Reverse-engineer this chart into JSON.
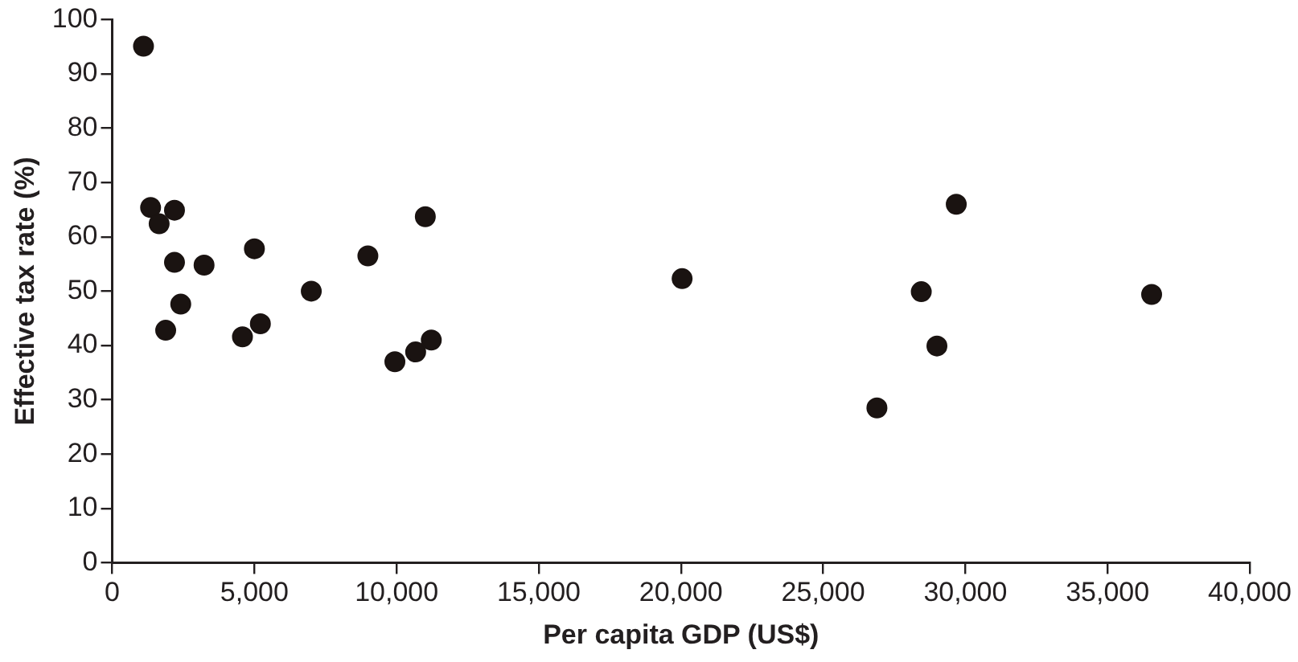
{
  "chart_data": {
    "type": "scatter",
    "xlabel": "Per capita GDP (US$)",
    "ylabel": "Effective tax rate (%)",
    "x": [
      1100,
      1350,
      1650,
      2190,
      2190,
      1880,
      2410,
      3230,
      4580,
      5000,
      5210,
      7000,
      8990,
      11010,
      9940,
      10670,
      11220,
      20040,
      26890,
      29680,
      28450,
      29000,
      36550
    ],
    "series": [
      {
        "color": "#1a1311",
        "values": [
          95.1,
          65.4,
          62.4,
          64.9,
          55.3,
          42.8,
          47.6,
          54.8,
          41.6,
          57.8,
          44.0,
          50.0,
          56.5,
          63.7,
          37.0,
          38.8,
          41.0,
          52.3,
          28.5,
          66.0,
          49.9,
          39.9,
          49.4
        ]
      }
    ],
    "xlim": [
      0,
      40000
    ],
    "xticks": [
      {
        "value": 0,
        "label": "0"
      },
      {
        "value": 5000,
        "label": "5,000"
      },
      {
        "value": 10000,
        "label": "10,000"
      },
      {
        "value": 15000,
        "label": "15,000"
      },
      {
        "value": 20000,
        "label": "20,000"
      },
      {
        "value": 25000,
        "label": "25,000"
      },
      {
        "value": 30000,
        "label": "30,000"
      },
      {
        "value": 35000,
        "label": "35,000"
      },
      {
        "value": 40000,
        "label": "40,000"
      }
    ],
    "ylim": [
      0,
      100
    ],
    "yticks": [
      0,
      10,
      20,
      30,
      40,
      50,
      60,
      70,
      80,
      90,
      100
    ],
    "grid": false,
    "legend": false,
    "marker": "circle"
  }
}
